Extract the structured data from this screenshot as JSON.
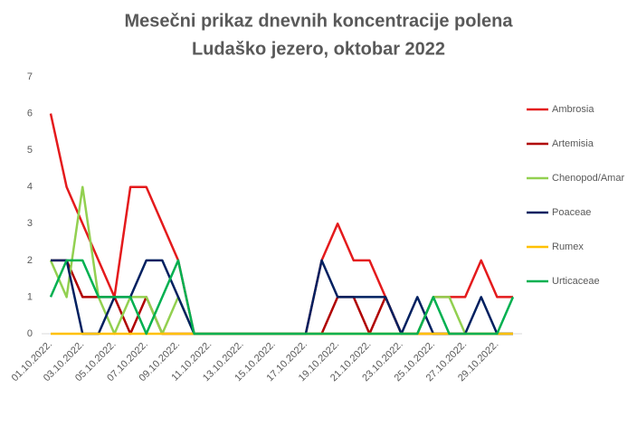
{
  "chart_data": {
    "type": "line",
    "title": "Mesečni prikaz dnevnih koncentracije polena",
    "subtitle": "Ludaško jezero, oktobar 2022",
    "categories": [
      "01.10.2022.",
      null,
      "03.10.2022.",
      null,
      "05.10.2022.",
      null,
      "07.10.2022.",
      null,
      "09.10.2022.",
      null,
      "11.10.2022.",
      null,
      "13.10.2022.",
      null,
      "15.10.2022.",
      null,
      "17.10.2022.",
      null,
      "19.10.2022.",
      null,
      "21.10.2022.",
      null,
      "23.10.2022.",
      null,
      "25.10.2022.",
      null,
      "27.10.2022.",
      null,
      "29.10.2022.",
      null
    ],
    "series": [
      {
        "name": "Ambrosia",
        "color": "#e41a1c",
        "values": [
          6,
          4,
          3,
          2,
          1,
          4,
          4,
          3,
          2,
          0,
          0,
          0,
          0,
          0,
          0,
          0,
          0,
          2,
          3,
          2,
          2,
          1,
          0,
          0,
          1,
          1,
          1,
          2,
          1,
          1
        ]
      },
      {
        "name": "Artemisia",
        "color": "#b00000",
        "values": [
          2,
          2,
          1,
          1,
          1,
          0,
          1,
          0,
          0,
          0,
          0,
          0,
          0,
          0,
          0,
          0,
          0,
          0,
          1,
          1,
          0,
          1,
          0,
          0,
          0,
          0,
          0,
          0,
          0,
          0
        ]
      },
      {
        "name": "Chenopod/Amar",
        "color": "#92d050",
        "values": [
          2,
          1,
          4,
          1,
          0,
          1,
          1,
          0,
          1,
          0,
          0,
          0,
          0,
          0,
          0,
          0,
          0,
          0,
          0,
          0,
          0,
          0,
          0,
          0,
          1,
          1,
          0,
          0,
          0,
          0
        ]
      },
      {
        "name": "Poaceae",
        "color": "#002060",
        "values": [
          2,
          2,
          0,
          0,
          1,
          1,
          2,
          2,
          1,
          0,
          0,
          0,
          0,
          0,
          0,
          0,
          0,
          2,
          1,
          1,
          1,
          1,
          0,
          1,
          0,
          0,
          0,
          1,
          0,
          0
        ]
      },
      {
        "name": "Rumex",
        "color": "#ffc000",
        "values": [
          0,
          0,
          0,
          0,
          0,
          0,
          0,
          0,
          0,
          0,
          0,
          0,
          0,
          0,
          0,
          0,
          0,
          0,
          0,
          0,
          0,
          0,
          0,
          0,
          0,
          0,
          0,
          0,
          0,
          0
        ]
      },
      {
        "name": "Urticaceae",
        "color": "#00b050",
        "values": [
          1,
          2,
          2,
          1,
          1,
          1,
          0,
          1,
          2,
          0,
          0,
          0,
          0,
          0,
          0,
          0,
          0,
          0,
          0,
          0,
          0,
          0,
          0,
          0,
          1,
          0,
          0,
          0,
          0,
          1
        ]
      }
    ],
    "ylim": [
      0,
      7
    ],
    "yticks": [
      0,
      1,
      2,
      3,
      4,
      5,
      6,
      7
    ],
    "grid": false,
    "legend": "right"
  }
}
